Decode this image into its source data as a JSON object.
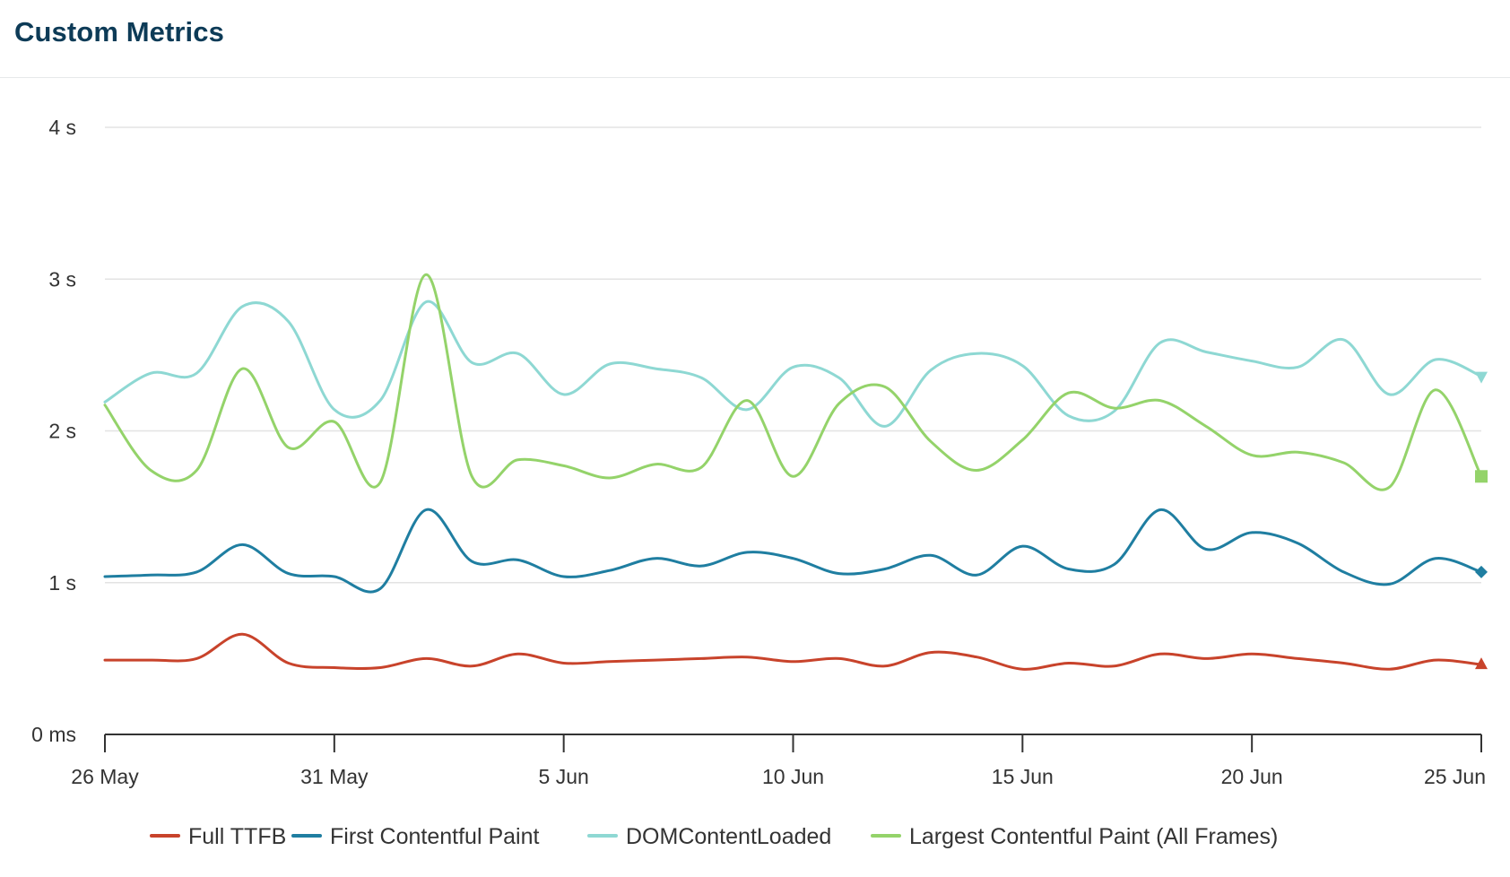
{
  "panel": {
    "title": "Custom Metrics"
  },
  "chart_data": {
    "type": "line",
    "x_unit": "date",
    "x": [
      "2024-05-26",
      "2024-05-27",
      "2024-05-28",
      "2024-05-29",
      "2024-05-30",
      "2024-05-31",
      "2024-06-01",
      "2024-06-02",
      "2024-06-03",
      "2024-06-04",
      "2024-06-05",
      "2024-06-06",
      "2024-06-07",
      "2024-06-08",
      "2024-06-09",
      "2024-06-10",
      "2024-06-11",
      "2024-06-12",
      "2024-06-13",
      "2024-06-14",
      "2024-06-15",
      "2024-06-16",
      "2024-06-17",
      "2024-06-18",
      "2024-06-19",
      "2024-06-20",
      "2024-06-21",
      "2024-06-22",
      "2024-06-23",
      "2024-06-24",
      "2024-06-25"
    ],
    "x_ticks": [
      {
        "date": "2024-05-26",
        "label": "26 May"
      },
      {
        "date": "2024-05-31",
        "label": "31 May"
      },
      {
        "date": "2024-06-05",
        "label": "5 Jun"
      },
      {
        "date": "2024-06-10",
        "label": "10 Jun"
      },
      {
        "date": "2024-06-15",
        "label": "15 Jun"
      },
      {
        "date": "2024-06-20",
        "label": "20 Jun"
      },
      {
        "date": "2024-06-25",
        "label": "25 Jun"
      }
    ],
    "y_unit": "seconds",
    "ylim": [
      0,
      4
    ],
    "y_ticks": [
      {
        "value": 0,
        "label": "0 ms"
      },
      {
        "value": 1,
        "label": "1 s"
      },
      {
        "value": 2,
        "label": "2 s"
      },
      {
        "value": 3,
        "label": "3 s"
      },
      {
        "value": 4,
        "label": "4 s"
      }
    ],
    "grid": true,
    "legend_position": "bottom",
    "series": [
      {
        "name": "Full TTFB",
        "color": "#c8432b",
        "marker": "triangle",
        "values": [
          0.49,
          0.49,
          0.5,
          0.66,
          0.47,
          0.44,
          0.44,
          0.5,
          0.45,
          0.53,
          0.47,
          0.48,
          0.49,
          0.5,
          0.51,
          0.48,
          0.5,
          0.45,
          0.54,
          0.51,
          0.43,
          0.47,
          0.45,
          0.53,
          0.5,
          0.53,
          0.5,
          0.47,
          0.43,
          0.49,
          0.46
        ]
      },
      {
        "name": "First Contentful Paint",
        "color": "#1f7ea1",
        "marker": "diamond",
        "values": [
          1.04,
          1.05,
          1.07,
          1.25,
          1.06,
          1.04,
          0.96,
          1.48,
          1.14,
          1.15,
          1.04,
          1.08,
          1.16,
          1.11,
          1.2,
          1.16,
          1.06,
          1.09,
          1.18,
          1.05,
          1.24,
          1.09,
          1.12,
          1.48,
          1.22,
          1.33,
          1.26,
          1.07,
          0.99,
          1.16,
          1.07
        ]
      },
      {
        "name": "DOMContentLoaded",
        "color": "#8ed8d3",
        "marker": "triangle-down",
        "values": [
          2.19,
          2.38,
          2.38,
          2.82,
          2.72,
          2.14,
          2.2,
          2.85,
          2.45,
          2.51,
          2.24,
          2.44,
          2.41,
          2.35,
          2.14,
          2.42,
          2.35,
          2.03,
          2.4,
          2.51,
          2.43,
          2.1,
          2.13,
          2.58,
          2.52,
          2.46,
          2.42,
          2.6,
          2.24,
          2.47,
          2.36
        ]
      },
      {
        "name": "Largest Contentful Paint (All Frames)",
        "color": "#94d36a",
        "marker": "square",
        "values": [
          2.17,
          1.74,
          1.74,
          2.41,
          1.89,
          2.06,
          1.66,
          3.03,
          1.7,
          1.81,
          1.77,
          1.69,
          1.78,
          1.76,
          2.2,
          1.7,
          2.18,
          2.29,
          1.93,
          1.74,
          1.94,
          2.25,
          2.15,
          2.2,
          2.03,
          1.84,
          1.86,
          1.79,
          1.63,
          2.27,
          1.7
        ]
      }
    ]
  }
}
